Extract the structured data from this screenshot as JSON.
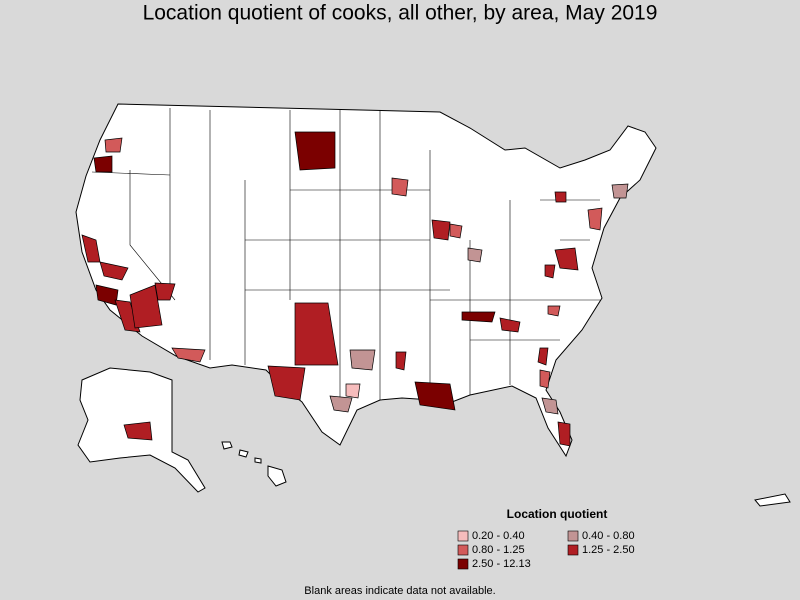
{
  "title": "Location quotient of cooks, all other, by area, May 2019",
  "legend": {
    "title": "Location quotient",
    "items": [
      {
        "label": "0.20 - 0.40",
        "color": "#f6bcbc"
      },
      {
        "label": "0.40 - 0.80",
        "color": "#c29494"
      },
      {
        "label": "0.80 - 1.25",
        "color": "#d25a5a"
      },
      {
        "label": "1.25 - 2.50",
        "color": "#b01e23"
      },
      {
        "label": "2.50 - 12.13",
        "color": "#7b0000"
      }
    ]
  },
  "footnote": "Blank areas indicate data not available."
}
